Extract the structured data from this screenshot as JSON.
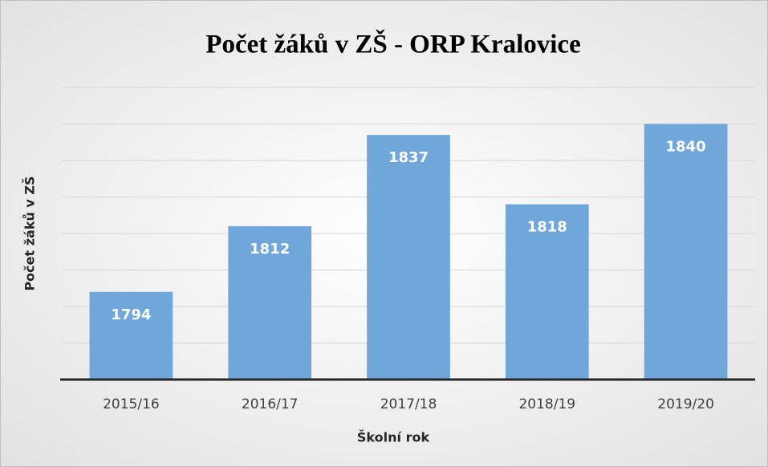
{
  "chart_data": {
    "type": "bar",
    "title": "Počet žáků v ZŠ - ORP Kralovice",
    "categories": [
      "2015/16",
      "2016/17",
      "2017/18",
      "2018/19",
      "2019/20"
    ],
    "values": [
      1794,
      1812,
      1837,
      1818,
      1840
    ],
    "color": "#70a7db",
    "x_label": "Školní rok",
    "y_label": "Počet žáků v ZŠ",
    "ylim": [
      1770,
      1850
    ],
    "yticks": [
      1780,
      1790,
      1800,
      1810,
      1820,
      1830,
      1840,
      1850
    ],
    "grid": true
  }
}
